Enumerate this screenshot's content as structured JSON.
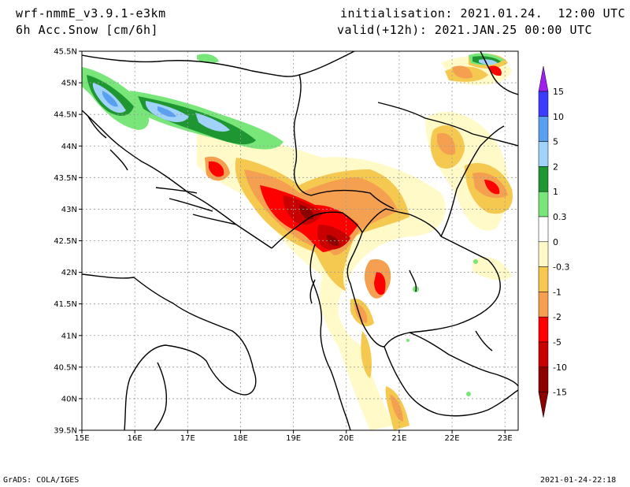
{
  "header": {
    "model": "wrf-nmmE_v3.9.1-e3km",
    "field": "6h Acc.Snow [cm/6h]",
    "init": "initialisation: 2021.01.24.  12:00 UTC",
    "valid": "valid(+12h): 2021.JAN.25 00:00 UTC"
  },
  "map": {
    "lat_labels": [
      "45.5N",
      "45N",
      "44.5N",
      "44N",
      "43.5N",
      "43N",
      "42.5N",
      "42N",
      "41.5N",
      "41N",
      "40.5N",
      "40N",
      "39.5N"
    ],
    "lon_labels": [
      "15E",
      "16E",
      "17E",
      "18E",
      "19E",
      "20E",
      "21E",
      "22E",
      "23E"
    ],
    "lat_range": [
      39.5,
      45.5
    ],
    "lon_range": [
      15.0,
      23.25
    ],
    "grid": true
  },
  "colorbar": {
    "labels": [
      "15",
      "10",
      "5",
      "2",
      "1",
      "0.3",
      "0",
      "-0.3",
      "-1",
      "-2",
      "-5",
      "-10",
      "-15"
    ],
    "colors": [
      "#a020f0",
      "#3c3cff",
      "#5aa0f0",
      "#a0d2fa",
      "#1e9632",
      "#78e678",
      "#ffffff",
      "#fffac8",
      "#f5c850",
      "#f5a050",
      "#ff0000",
      "#c80000",
      "#8c0000"
    ],
    "top_arrow_color": "#a020f0",
    "bottom_arrow_color": "#8c0000"
  },
  "footer": {
    "left": "GrADS: COLA/IGES",
    "right": "2021-01-24-22:18"
  }
}
